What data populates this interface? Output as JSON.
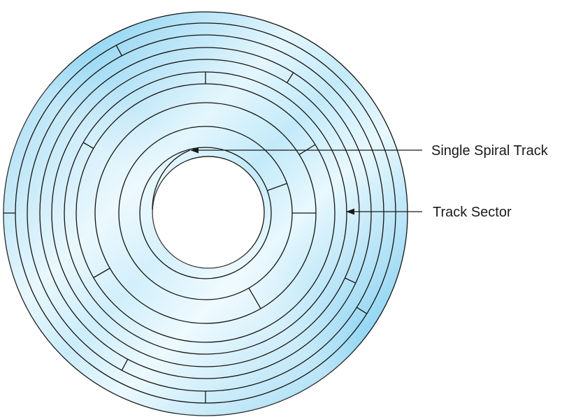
{
  "diagram": {
    "labels": {
      "spiral": "Single Spiral Track",
      "sector": "Track Sector"
    },
    "colors": {
      "disc_light": "#e8f7fd",
      "disc_mid": "#b9e6f8",
      "disc_dark": "#5ec6ef",
      "line": "#141414",
      "text": "#1a1a1a"
    }
  }
}
